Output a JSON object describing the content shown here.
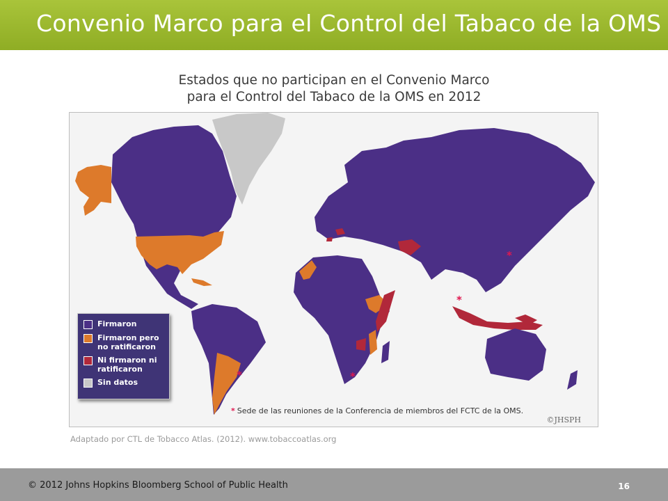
{
  "slide": {
    "title": "Convenio Marco para el Control del Tabaco de la OMS",
    "page_number": "16",
    "copyright": "© 2012  Johns Hopkins Bloomberg School of Public Health"
  },
  "map": {
    "title_line1": "Estados que no participan en el Convenio Marco",
    "title_line2": "para el Control del Tabaco de la OMS en 2012",
    "legend": [
      {
        "label": "Firmaron",
        "color": "#4b2f86"
      },
      {
        "label": "Firmaron pero\nno ratificaron",
        "color": "#dd7a2b"
      },
      {
        "label": "Ni firmaron ni\nratificaron",
        "color": "#b1283a"
      },
      {
        "label": "Sin datos",
        "color": "#c8c8c8"
      }
    ],
    "marker": "*",
    "footnote": "Sede de las reuniones de la Conferencia de miembros del FCTC de la OMS.",
    "brand": "©JHSPH",
    "source": "Adaptado por CTL de Tobacco Atlas. (2012). www.tobaccoatlas.org"
  }
}
